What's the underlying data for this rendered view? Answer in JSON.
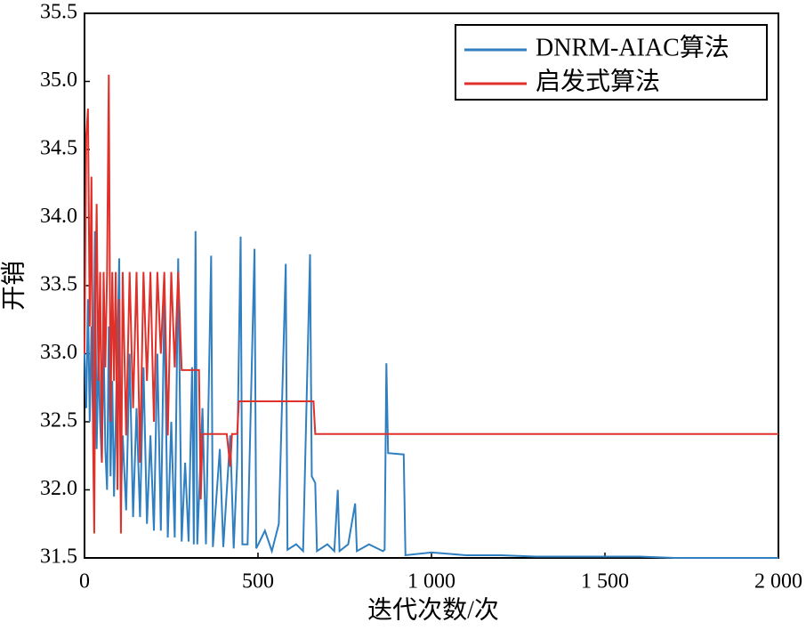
{
  "chart_data": {
    "type": "line",
    "xlabel": "迭代次数/次",
    "ylabel": "开销",
    "xlim": [
      0,
      2000
    ],
    "ylim": [
      31.5,
      35.5
    ],
    "xticks": [
      0,
      500,
      {
        "value": 1000,
        "label": "1 000"
      },
      {
        "value": 1500,
        "label": "1 500"
      },
      {
        "value": 2000,
        "label": "2 000"
      }
    ],
    "yticks": [
      31.5,
      {
        "value": 32,
        "label": "32.0"
      },
      32.5,
      {
        "value": 33,
        "label": "33.0"
      },
      33.5,
      {
        "value": 34,
        "label": "34.0"
      },
      34.5,
      {
        "value": 35,
        "label": "35.0"
      },
      35.5
    ],
    "legend": "upper right",
    "series": [
      {
        "name": "DNRM-AIAC算法",
        "color": "#2f7fc1",
        "x": [
          0,
          5,
          10,
          15,
          20,
          25,
          30,
          35,
          40,
          45,
          50,
          55,
          60,
          65,
          70,
          75,
          80,
          85,
          90,
          100,
          105,
          110,
          120,
          130,
          140,
          150,
          160,
          170,
          180,
          190,
          200,
          210,
          220,
          230,
          240,
          250,
          260,
          270,
          280,
          290,
          300,
          310,
          315,
          320,
          325,
          340,
          350,
          365,
          370,
          390,
          400,
          420,
          430,
          440,
          450,
          455,
          470,
          490,
          495,
          520,
          540,
          560,
          580,
          585,
          610,
          630,
          650,
          655,
          665,
          670,
          700,
          720,
          730,
          735,
          760,
          780,
          785,
          820,
          860,
          865,
          870,
          875,
          920,
          925,
          1000,
          1100,
          1200,
          1300,
          1400,
          1500,
          1600,
          1700,
          1800,
          2000
        ],
        "values": [
          33.0,
          32.6,
          33.4,
          32.5,
          33.2,
          32.4,
          33.9,
          32.3,
          33.0,
          32.5,
          32.2,
          33.1,
          32.3,
          32.0,
          33.2,
          32.1,
          32.8,
          31.95,
          32.5,
          33.7,
          31.9,
          32.4,
          31.85,
          33.0,
          31.8,
          32.6,
          31.8,
          32.9,
          31.75,
          32.4,
          31.7,
          33.0,
          31.7,
          33.4,
          31.65,
          32.5,
          31.65,
          33.7,
          31.62,
          32.2,
          31.62,
          32.9,
          31.6,
          33.9,
          31.6,
          32.6,
          31.6,
          33.72,
          31.58,
          32.3,
          31.58,
          32.4,
          31.57,
          32.2,
          33.86,
          31.6,
          31.6,
          33.77,
          31.57,
          31.7,
          31.55,
          31.75,
          33.66,
          31.56,
          31.6,
          31.55,
          33.73,
          32.1,
          32.05,
          31.55,
          31.6,
          31.55,
          32.0,
          31.55,
          31.6,
          31.9,
          31.55,
          31.6,
          31.55,
          31.56,
          32.93,
          32.27,
          32.26,
          31.52,
          31.54,
          31.52,
          31.52,
          31.51,
          31.51,
          31.51,
          31.51,
          31.5,
          31.5,
          31.5
        ]
      },
      {
        "name": "启发式算法",
        "color": "#e0302a",
        "x": [
          0,
          5,
          10,
          15,
          20,
          25,
          28,
          32,
          35,
          40,
          45,
          50,
          55,
          60,
          65,
          70,
          75,
          80,
          85,
          90,
          95,
          100,
          105,
          110,
          120,
          130,
          140,
          150,
          160,
          170,
          180,
          190,
          200,
          210,
          220,
          230,
          240,
          250,
          260,
          270,
          280,
          330,
          335,
          340,
          410,
          420,
          425,
          440,
          445,
          660,
          665,
          2000
        ],
        "values": [
          33.0,
          34.6,
          34.8,
          33.2,
          34.3,
          32.3,
          31.68,
          33.5,
          34.1,
          32.8,
          33.6,
          32.2,
          33.6,
          32.9,
          33.6,
          35.05,
          32.5,
          33.6,
          32.8,
          33.6,
          32.0,
          33.4,
          31.68,
          33.6,
          32.4,
          33.6,
          32.6,
          33.6,
          32.2,
          33.6,
          32.8,
          33.6,
          32.5,
          33.6,
          33.0,
          33.6,
          32.4,
          33.6,
          32.9,
          33.6,
          32.88,
          32.88,
          31.93,
          32.41,
          32.41,
          32.17,
          32.41,
          32.41,
          32.65,
          32.65,
          32.41,
          32.41
        ]
      }
    ]
  }
}
